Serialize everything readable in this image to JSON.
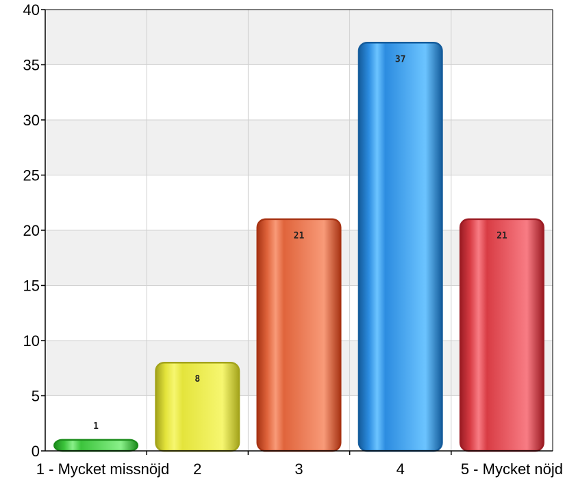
{
  "chart_data": {
    "type": "bar",
    "title": "",
    "xlabel": "",
    "ylabel": "",
    "categories": [
      "1 - Mycket missnöjd",
      "2",
      "3",
      "4",
      "5 - Mycket nöjd"
    ],
    "values": [
      1,
      8,
      21,
      37,
      21
    ],
    "data_labels": [
      "1",
      "8",
      "21",
      "37",
      "21"
    ],
    "ylim": [
      0,
      40
    ],
    "yticks": [
      "0",
      "5",
      "10",
      "15",
      "20",
      "25",
      "30",
      "35",
      "40"
    ],
    "grid": true,
    "legend": "none",
    "colors": [
      "#3cc43c",
      "#e4e43c",
      "#e0643c",
      "#2c8ce0",
      "#d83c44"
    ],
    "colors_light": [
      "#8af08a",
      "#f6f670",
      "#f89a78",
      "#6cc4ff",
      "#f87c84"
    ],
    "colors_dark": [
      "#1c8c1c",
      "#a4a41c",
      "#a83414",
      "#145c9c",
      "#9c1c24"
    ],
    "label_colors": [
      "#2a7a2a",
      "#222222",
      "#222222",
      "#222222",
      "#222222"
    ],
    "band_color": "#f0f0f0",
    "grid_color": "#d0d0d0"
  }
}
